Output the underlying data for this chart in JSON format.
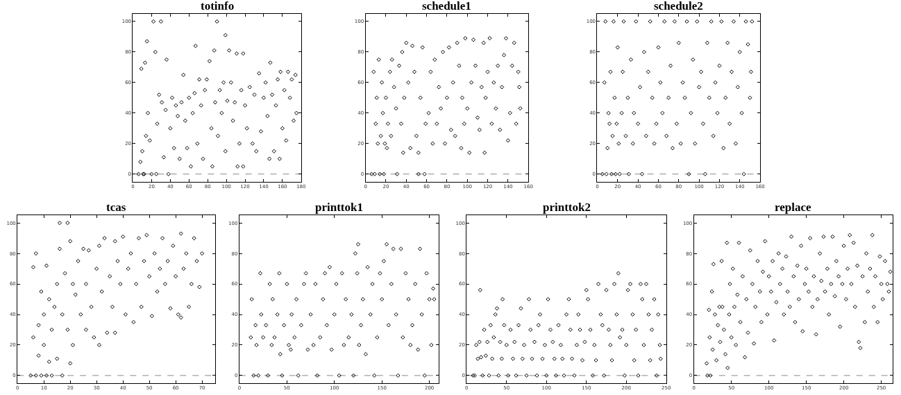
{
  "chart_data": [
    {
      "type": "scatter",
      "title": "totinfo",
      "marker": "diamond",
      "xlim": [
        0,
        180
      ],
      "ylim": [
        -5,
        105
      ],
      "xticks": [
        0,
        20,
        40,
        60,
        80,
        100,
        120,
        140,
        160,
        180
      ],
      "yticks": [
        0,
        20,
        40,
        60,
        80,
        100
      ],
      "ref_lines": [
        {
          "axis": "y",
          "value": 0,
          "color": "#888888",
          "line_style": "dashed"
        }
      ],
      "series": [
        {
          "color": "#000000",
          "x": [
            6,
            8,
            9,
            10,
            11,
            12,
            13,
            14,
            15,
            16,
            18,
            20,
            22,
            24,
            25,
            26,
            28,
            30,
            31,
            33,
            35,
            36,
            38,
            40,
            42,
            44,
            46,
            48,
            50,
            52,
            54,
            56,
            58,
            60,
            62,
            64,
            66,
            67,
            69,
            71,
            73,
            75,
            77,
            79,
            82,
            84,
            85,
            87,
            88,
            90,
            91,
            93,
            95,
            97,
            99,
            99,
            101,
            103,
            105,
            107,
            109,
            111,
            112,
            114,
            116,
            118,
            118,
            120,
            122,
            125,
            128,
            130,
            132,
            135,
            137,
            140,
            142,
            144,
            146,
            147,
            149,
            151,
            153,
            155,
            157,
            158,
            160,
            162,
            164,
            166,
            168,
            170,
            172,
            174,
            175
          ],
          "values": [
            0,
            8,
            69,
            15,
            0,
            0,
            73,
            25,
            87,
            40,
            22,
            0,
            100,
            80,
            0,
            33,
            52,
            100,
            47,
            11,
            42,
            75,
            0,
            30,
            50,
            17,
            45,
            38,
            10,
            47,
            65,
            35,
            17,
            50,
            5,
            40,
            53,
            84,
            20,
            62,
            45,
            10,
            55,
            62,
            74,
            30,
            5,
            81,
            47,
            100,
            25,
            55,
            40,
            60,
            91,
            15,
            48,
            81,
            60,
            35,
            47,
            79,
            5,
            20,
            55,
            79,
            5,
            45,
            30,
            57,
            20,
            52,
            15,
            66,
            28,
            50,
            60,
            38,
            10,
            73,
            52,
            15,
            45,
            62,
            10,
            67,
            30,
            55,
            22,
            67,
            50,
            62,
            35,
            65,
            40
          ]
        }
      ]
    },
    {
      "type": "scatter",
      "title": "schedule1",
      "marker": "diamond",
      "xlim": [
        0,
        160
      ],
      "ylim": [
        -5,
        105
      ],
      "xticks": [
        0,
        20,
        40,
        60,
        80,
        100,
        120,
        140,
        160
      ],
      "yticks": [
        0,
        20,
        40,
        60,
        80,
        100
      ],
      "ref_lines": [
        {
          "axis": "y",
          "value": 0,
          "color": "#888888",
          "line_style": "dashed"
        }
      ],
      "series": [
        {
          "color": "#000000",
          "x": [
            6,
            8,
            9,
            10,
            11,
            12,
            13,
            14,
            15,
            16,
            17,
            18,
            19,
            20,
            21,
            22,
            24,
            25,
            26,
            28,
            30,
            31,
            33,
            35,
            36,
            37,
            38,
            40,
            42,
            44,
            46,
            48,
            50,
            52,
            52,
            54,
            56,
            58,
            59,
            62,
            64,
            66,
            68,
            70,
            72,
            74,
            76,
            78,
            80,
            82,
            84,
            86,
            88,
            90,
            92,
            94,
            95,
            97,
            98,
            100,
            102,
            104,
            106,
            108,
            110,
            112,
            114,
            116,
            117,
            118,
            120,
            122,
            124,
            126,
            128,
            130,
            132,
            134,
            136,
            138,
            140,
            142,
            144,
            146,
            148,
            150,
            151,
            152
          ],
          "values": [
            0,
            67,
            0,
            33,
            50,
            20,
            75,
            0,
            25,
            60,
            40,
            0,
            20,
            50,
            17,
            33,
            67,
            25,
            75,
            57,
            43,
            0,
            71,
            33,
            80,
            14,
            50,
            86,
            60,
            17,
            84,
            67,
            25,
            14,
            0,
            50,
            83,
            0,
            33,
            40,
            67,
            20,
            75,
            33,
            57,
            43,
            80,
            20,
            50,
            83,
            29,
            60,
            25,
            86,
            71,
            17,
            50,
            33,
            89,
            43,
            14,
            60,
            88,
            71,
            37,
            29,
            57,
            86,
            14,
            50,
            67,
            89,
            33,
            60,
            43,
            71,
            29,
            57,
            78,
            89,
            22,
            40,
            71,
            86,
            33,
            67,
            57,
            43
          ]
        }
      ]
    },
    {
      "type": "scatter",
      "title": "schedule2",
      "marker": "diamond",
      "xlim": [
        0,
        160
      ],
      "ylim": [
        -5,
        105
      ],
      "xticks": [
        0,
        20,
        40,
        60,
        80,
        100,
        120,
        140,
        160
      ],
      "yticks": [
        0,
        20,
        40,
        60,
        80,
        100
      ],
      "ref_lines": [
        {
          "axis": "y",
          "value": 0,
          "color": "#888888",
          "line_style": "dashed"
        }
      ],
      "series": [
        {
          "color": "#000000",
          "x": [
            5,
            7,
            8,
            9,
            10,
            11,
            12,
            13,
            14,
            15,
            16,
            17,
            18,
            19,
            20,
            21,
            22,
            24,
            25,
            26,
            28,
            30,
            31,
            33,
            35,
            36,
            38,
            40,
            42,
            44,
            46,
            48,
            50,
            52,
            54,
            56,
            58,
            60,
            62,
            64,
            66,
            68,
            70,
            72,
            74,
            76,
            78,
            80,
            82,
            84,
            86,
            88,
            90,
            92,
            94,
            96,
            98,
            100,
            102,
            104,
            106,
            108,
            110,
            112,
            114,
            116,
            118,
            120,
            122,
            124,
            126,
            128,
            130,
            132,
            134,
            136,
            138,
            140,
            142,
            144,
            146,
            148,
            150,
            151,
            152
          ],
          "values": [
            0,
            60,
            100,
            0,
            17,
            40,
            33,
            67,
            0,
            25,
            100,
            50,
            0,
            33,
            83,
            20,
            0,
            40,
            67,
            100,
            25,
            50,
            0,
            75,
            20,
            40,
            100,
            33,
            57,
            0,
            80,
            25,
            67,
            100,
            50,
            20,
            33,
            83,
            60,
            40,
            100,
            25,
            50,
            71,
            17,
            100,
            33,
            86,
            20,
            60,
            50,
            100,
            0,
            40,
            75,
            20,
            100,
            57,
            67,
            33,
            0,
            86,
            50,
            100,
            25,
            60,
            40,
            71,
            100,
            17,
            50,
            86,
            33,
            67,
            100,
            20,
            57,
            80,
            40,
            0,
            100,
            85,
            50,
            67,
            100
          ]
        }
      ]
    },
    {
      "type": "scatter",
      "title": "tcas",
      "marker": "diamond",
      "xlim": [
        0,
        75
      ],
      "ylim": [
        -5,
        105
      ],
      "xticks": [
        0,
        10,
        20,
        30,
        40,
        50,
        60,
        70
      ],
      "yticks": [
        0,
        20,
        40,
        60,
        80,
        100
      ],
      "ref_lines": [
        {
          "axis": "y",
          "value": 0,
          "color": "#888888",
          "line_style": "dashed"
        }
      ],
      "series": [
        {
          "color": "#000000",
          "x": [
            5,
            6,
            6,
            7,
            7,
            8,
            8,
            9,
            9,
            10,
            10,
            11,
            11,
            12,
            12,
            13,
            13,
            14,
            15,
            15,
            16,
            16,
            17,
            17,
            18,
            19,
            19,
            20,
            20,
            21,
            21,
            22,
            23,
            24,
            25,
            26,
            26,
            27,
            28,
            29,
            30,
            31,
            31,
            32,
            33,
            34,
            35,
            36,
            37,
            37,
            38,
            39,
            40,
            41,
            42,
            43,
            44,
            45,
            46,
            47,
            48,
            49,
            50,
            51,
            52,
            53,
            54,
            55,
            56,
            57,
            58,
            59,
            60,
            61,
            62,
            62,
            63,
            64,
            65,
            66,
            67,
            68,
            69,
            70
          ],
          "values": [
            0,
            25,
            71,
            80,
            0,
            13,
            33,
            0,
            55,
            40,
            20,
            0,
            72,
            9,
            50,
            0,
            30,
            45,
            11,
            60,
            100,
            83,
            0,
            40,
            67,
            100,
            30,
            8,
            88,
            20,
            60,
            53,
            75,
            40,
            83,
            30,
            60,
            82,
            45,
            25,
            70,
            20,
            85,
            55,
            90,
            28,
            65,
            45,
            28,
            88,
            75,
            60,
            91,
            40,
            70,
            80,
            35,
            60,
            90,
            45,
            75,
            92,
            65,
            39,
            80,
            55,
            70,
            90,
            60,
            75,
            44,
            85,
            65,
            40,
            93,
            38,
            70,
            80,
            45,
            60,
            90,
            75,
            58,
            80
          ]
        }
      ]
    },
    {
      "type": "scatter",
      "title": "printtok1",
      "marker": "diamond",
      "xlim": [
        0,
        210
      ],
      "ylim": [
        -5,
        105
      ],
      "xticks": [
        0,
        50,
        100,
        150,
        200
      ],
      "yticks": [
        0,
        20,
        40,
        60,
        80,
        100
      ],
      "ref_lines": [
        {
          "axis": "y",
          "value": 0,
          "color": "#888888",
          "line_style": "dashed"
        }
      ],
      "series": [
        {
          "color": "#000000",
          "x": [
            12,
            13,
            15,
            17,
            18,
            20,
            22,
            23,
            25,
            28,
            30,
            32,
            34,
            35,
            37,
            40,
            42,
            43,
            45,
            47,
            50,
            52,
            54,
            55,
            58,
            60,
            62,
            65,
            68,
            70,
            72,
            75,
            78,
            80,
            82,
            85,
            88,
            90,
            92,
            95,
            97,
            100,
            102,
            105,
            108,
            110,
            112,
            115,
            118,
            120,
            122,
            124,
            125,
            126,
            128,
            130,
            133,
            135,
            138,
            140,
            142,
            145,
            148,
            150,
            152,
            155,
            157,
            160,
            162,
            165,
            167,
            170,
            172,
            175,
            178,
            180,
            182,
            185,
            188,
            190,
            192,
            195,
            197,
            200,
            202,
            204,
            205
          ],
          "values": [
            25,
            50,
            0,
            33,
            20,
            0,
            67,
            40,
            25,
            33,
            0,
            60,
            20,
            50,
            25,
            40,
            67,
            14,
            0,
            33,
            60,
            20,
            17,
            40,
            25,
            50,
            0,
            33,
            60,
            67,
            17,
            40,
            20,
            60,
            0,
            25,
            50,
            67,
            33,
            71,
            17,
            40,
            60,
            0,
            67,
            20,
            50,
            25,
            40,
            0,
            80,
            67,
            86,
            20,
            33,
            50,
            14,
            71,
            40,
            60,
            0,
            25,
            67,
            50,
            75,
            86,
            33,
            60,
            83,
            40,
            0,
            83,
            25,
            67,
            50,
            20,
            33,
            60,
            17,
            83,
            40,
            0,
            67,
            50,
            20,
            57,
            50
          ]
        }
      ]
    },
    {
      "type": "scatter",
      "title": "printtok2",
      "marker": "diamond",
      "xlim": [
        0,
        250
      ],
      "ylim": [
        -5,
        105
      ],
      "xticks": [
        0,
        50,
        100,
        150,
        200,
        250
      ],
      "yticks": [
        0,
        20,
        40,
        60,
        80,
        100
      ],
      "ref_lines": [
        {
          "axis": "y",
          "value": 0,
          "color": "#888888",
          "line_style": "dashed"
        }
      ],
      "series": [
        {
          "color": "#000000",
          "x": [
            8,
            10,
            12,
            14,
            16,
            17,
            18,
            20,
            22,
            24,
            26,
            28,
            30,
            32,
            34,
            36,
            38,
            40,
            42,
            44,
            45,
            47,
            50,
            52,
            55,
            58,
            60,
            62,
            65,
            68,
            70,
            72,
            75,
            78,
            80,
            82,
            85,
            88,
            90,
            92,
            95,
            98,
            100,
            102,
            105,
            108,
            110,
            112,
            115,
            118,
            120,
            122,
            125,
            128,
            130,
            132,
            135,
            138,
            140,
            142,
            145,
            148,
            150,
            152,
            155,
            158,
            160,
            162,
            165,
            168,
            170,
            172,
            175,
            178,
            180,
            182,
            185,
            188,
            190,
            192,
            195,
            198,
            200,
            202,
            205,
            208,
            210,
            212,
            215,
            218,
            220,
            222,
            225,
            228,
            230,
            232,
            235,
            238,
            240,
            242,
            243
          ],
          "values": [
            0,
            0,
            20,
            11,
            22,
            56,
            12,
            0,
            30,
            13,
            22,
            0,
            33,
            11,
            25,
            40,
            44,
            0,
            22,
            11,
            50,
            33,
            20,
            0,
            30,
            11,
            22,
            0,
            33,
            44,
            11,
            20,
            0,
            50,
            30,
            11,
            22,
            0,
            33,
            40,
            11,
            20,
            0,
            50,
            30,
            22,
            11,
            0,
            33,
            20,
            11,
            0,
            40,
            50,
            30,
            11,
            0,
            20,
            40,
            30,
            10,
            22,
            56,
            50,
            30,
            0,
            20,
            10,
            60,
            40,
            33,
            0,
            56,
            30,
            20,
            10,
            60,
            40,
            67,
            25,
            30,
            0,
            20,
            56,
            60,
            40,
            10,
            30,
            0,
            60,
            50,
            20,
            60,
            40,
            10,
            30,
            50,
            0,
            40,
            20,
            11
          ]
        }
      ]
    },
    {
      "type": "scatter",
      "title": "replace",
      "marker": "diamond",
      "xlim": [
        0,
        265
      ],
      "ylim": [
        -5,
        105
      ],
      "xticks": [
        0,
        50,
        100,
        150,
        200,
        250
      ],
      "yticks": [
        0,
        20,
        40,
        60,
        80,
        100
      ],
      "ref_lines": [
        {
          "axis": "y",
          "value": 0,
          "color": "#888888",
          "line_style": "dashed"
        }
      ],
      "series": [
        {
          "color": "#000000",
          "x": [
            17,
            18,
            20,
            21,
            22,
            24,
            25,
            26,
            28,
            30,
            32,
            34,
            35,
            37,
            38,
            40,
            42,
            44,
            45,
            47,
            48,
            50,
            52,
            54,
            56,
            58,
            60,
            62,
            65,
            68,
            70,
            72,
            75,
            78,
            80,
            82,
            85,
            88,
            90,
            92,
            95,
            98,
            100,
            103,
            105,
            107,
            110,
            113,
            115,
            118,
            120,
            123,
            125,
            128,
            130,
            133,
            135,
            138,
            140,
            143,
            145,
            148,
            150,
            153,
            155,
            158,
            160,
            163,
            165,
            168,
            170,
            173,
            175,
            178,
            180,
            183,
            185,
            188,
            190,
            193,
            195,
            198,
            200,
            203,
            205,
            208,
            210,
            213,
            215,
            218,
            220,
            222,
            225,
            228,
            230,
            232,
            235,
            238,
            240,
            242,
            245,
            248,
            250,
            252,
            255,
            258,
            260,
            262
          ],
          "values": [
            8,
            0,
            43,
            25,
            0,
            55,
            17,
            73,
            40,
            10,
            33,
            45,
            22,
            75,
            45,
            30,
            14,
            87,
            5,
            40,
            60,
            25,
            70,
            45,
            20,
            53,
            87,
            35,
            65,
            12,
            50,
            28,
            82,
            60,
            21,
            45,
            75,
            55,
            35,
            68,
            88,
            40,
            65,
            55,
            75,
            23,
            48,
            80,
            60,
            70,
            40,
            78,
            55,
            45,
            91,
            65,
            35,
            72,
            50,
            85,
            29,
            60,
            70,
            55,
            90,
            45,
            65,
            27,
            50,
            80,
            62,
            91,
            55,
            70,
            40,
            60,
            91,
            52,
            75,
            65,
            32,
            60,
            85,
            50,
            70,
            92,
            60,
            87,
            45,
            72,
            22,
            18,
            65,
            35,
            80,
            55,
            70,
            92,
            45,
            65,
            35,
            78,
            60,
            50,
            75,
            60,
            55,
            68
          ]
        }
      ]
    }
  ]
}
